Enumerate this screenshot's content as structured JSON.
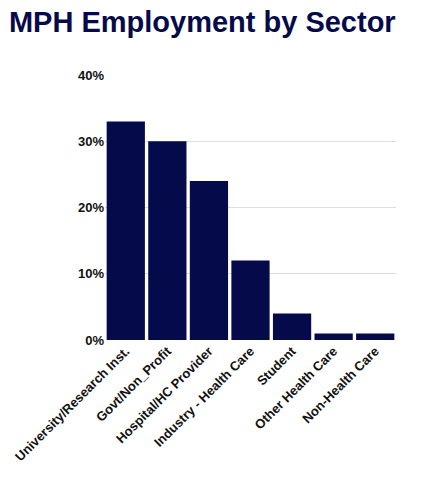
{
  "chart_data": {
    "type": "bar",
    "title": "MPH Employment by Sector",
    "categories": [
      "University/Research Inst.",
      "Govt/Non_Profit",
      "Hospital/HC Provider",
      "Industry - Health Care",
      "Student",
      "Other Health Care",
      "Non-Health Care"
    ],
    "values": [
      33,
      30,
      24,
      12,
      4,
      1,
      1
    ],
    "color": "#050a4a",
    "ylim": [
      0,
      40
    ],
    "yticks": [
      {
        "value": 0,
        "label": "0%"
      },
      {
        "value": 10,
        "label": "10%"
      },
      {
        "value": 20,
        "label": "20%"
      },
      {
        "value": 30,
        "label": "30%"
      },
      {
        "value": 40,
        "label": "40%"
      }
    ],
    "grid": true
  }
}
